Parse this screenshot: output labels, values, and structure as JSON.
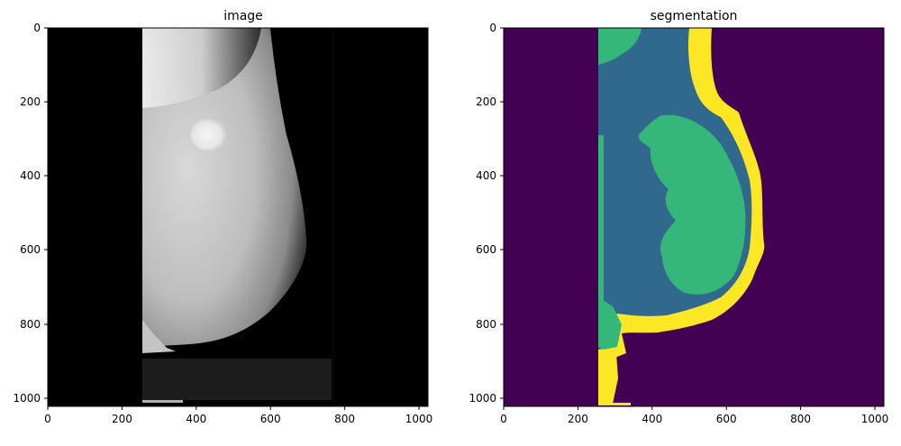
{
  "panels": [
    {
      "title": "image",
      "kind": "grayscale-mammogram",
      "xticks": [
        "0",
        "200",
        "400",
        "600",
        "800",
        "1000"
      ],
      "yticks": [
        "0",
        "200",
        "400",
        "600",
        "800",
        "1000"
      ]
    },
    {
      "title": "segmentation",
      "kind": "label-map",
      "xticks": [
        "0",
        "200",
        "400",
        "600",
        "800",
        "1000"
      ],
      "yticks": [
        "0",
        "200",
        "400",
        "600",
        "800",
        "1000"
      ]
    }
  ],
  "colors": {
    "background_label": "#440154",
    "dense_tissue_label": "#35b779",
    "fatty_tissue_label": "#31688e",
    "skin_label": "#fde725",
    "image_black": "#000000"
  }
}
